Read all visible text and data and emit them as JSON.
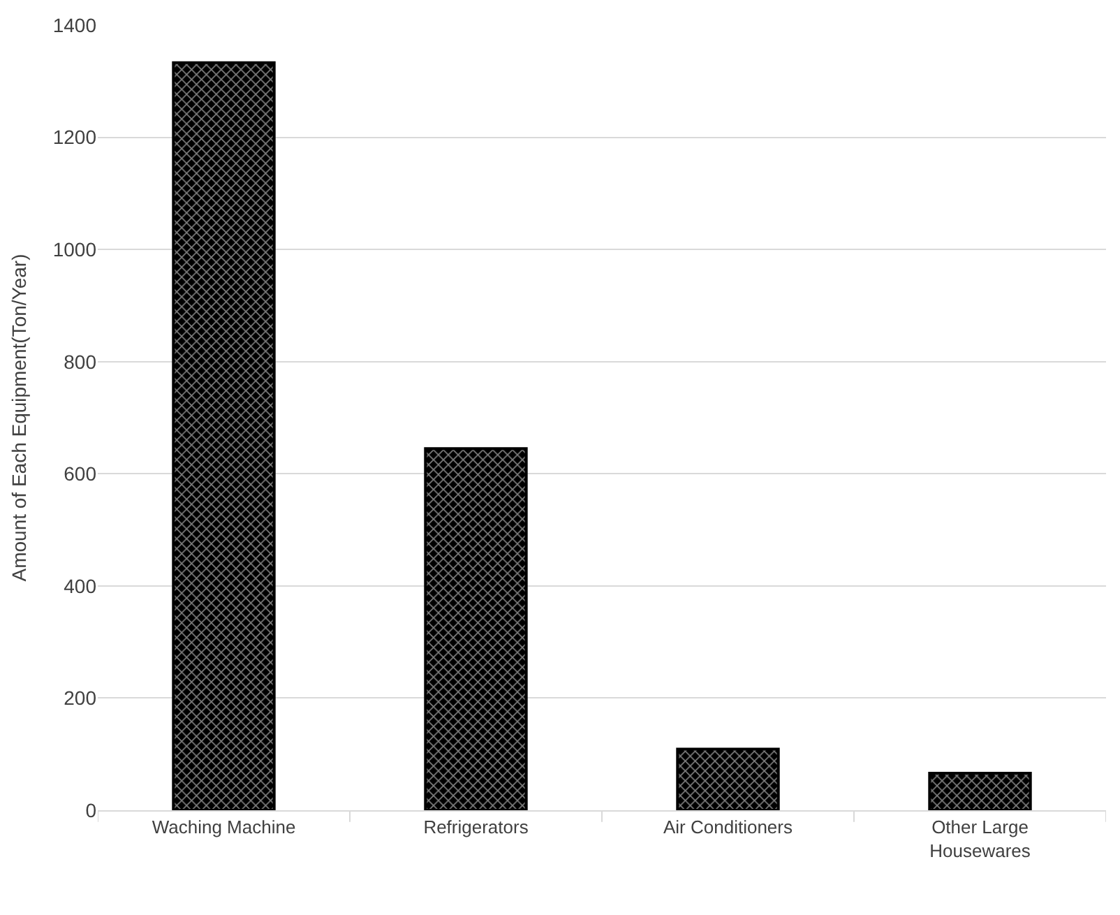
{
  "chart_data": {
    "type": "bar",
    "ylabel": "Amount of Each Equipment(Ton/Year)",
    "categories": [
      "Waching Machine",
      "Refrigerators",
      "Air Conditioners",
      "Other Large Housewares"
    ],
    "values": [
      1333,
      645,
      109,
      66
    ],
    "color": "#000000",
    "ylim": [
      0,
      1400
    ],
    "yticks": [
      0,
      200,
      400,
      600,
      800,
      1000,
      1200,
      1400
    ],
    "grid": "y",
    "legend": false
  }
}
